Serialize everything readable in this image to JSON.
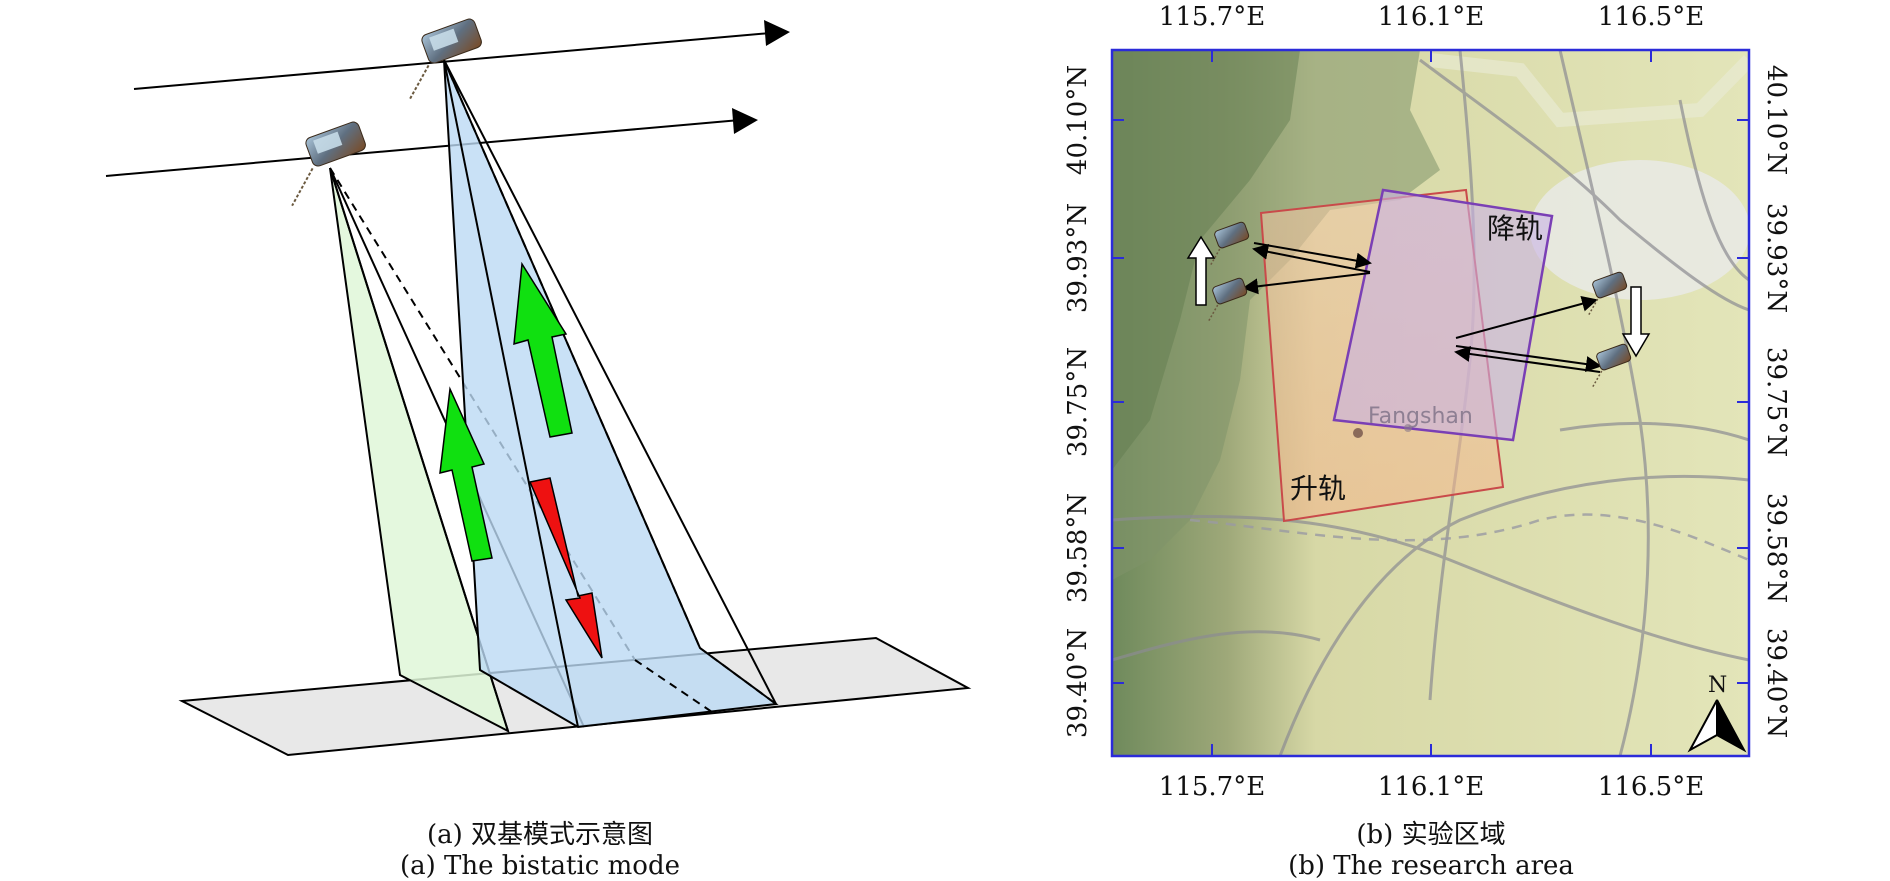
{
  "panel_a": {
    "caption_cn": "(a) 双基模式示意图",
    "caption_en": "(a) The bistatic mode",
    "colors": {
      "beam_green": "#dff7d8",
      "beam_blue": "#bcd9f4",
      "ground": "#e6e6e6",
      "arrow_green": "#10e010",
      "arrow_red": "#ee1111"
    },
    "icons": [
      "satellite-icon",
      "orbit-arrow",
      "motion-arrow-up",
      "motion-arrow-down"
    ]
  },
  "panel_b": {
    "caption_cn": "(b) 实验区域",
    "caption_en": "(b) The research area",
    "x_ticks": [
      "115.7°E",
      "116.1°E",
      "116.5°E"
    ],
    "y_ticks": [
      "40.10°N",
      "39.93°N",
      "39.75°N",
      "39.58°N",
      "39.40°N"
    ],
    "place_label": "Fangshan",
    "ascending_label": "升轨",
    "descending_label": "降轨",
    "north_label": "N",
    "colors": {
      "frame": "#2b2bd9",
      "ascending": "#c94a4a",
      "descending": "#7a3fb5",
      "terrain": "#dfe2b0",
      "mountain": "#7f946a"
    }
  }
}
